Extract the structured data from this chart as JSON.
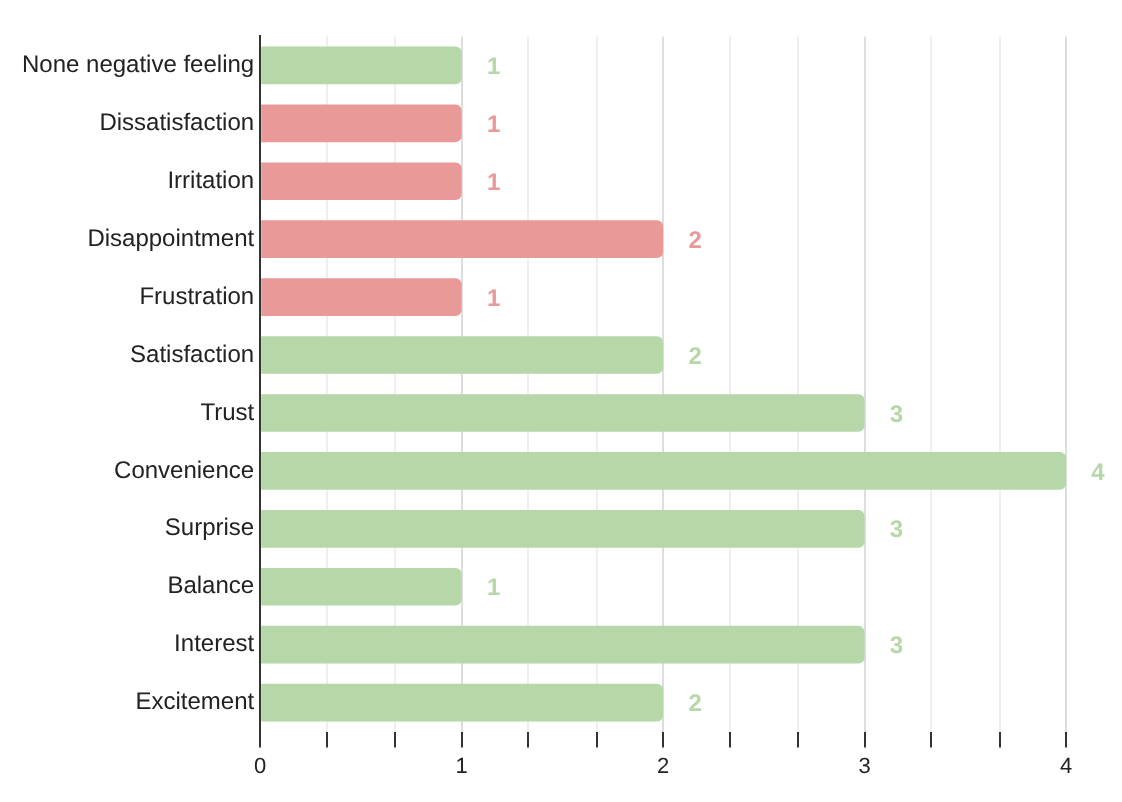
{
  "chart_data": {
    "type": "bar",
    "orientation": "horizontal",
    "categories": [
      "None negative feeling",
      "Dissatisfaction",
      "Irritation",
      "Disappointment",
      "Frustration",
      "Satisfaction",
      "Trust",
      "Convenience",
      "Surprise",
      "Balance",
      "Interest",
      "Excitement"
    ],
    "values": [
      1,
      1,
      1,
      2,
      1,
      2,
      3,
      4,
      3,
      1,
      3,
      2
    ],
    "colors": [
      "#b6d7a8",
      "#ea9999",
      "#ea9999",
      "#ea9999",
      "#ea9999",
      "#b6d7a8",
      "#b6d7a8",
      "#b6d7a8",
      "#b6d7a8",
      "#b6d7a8",
      "#b6d7a8",
      "#b6d7a8"
    ],
    "xlim": [
      0,
      4
    ],
    "xticks": [
      0,
      {
        "value": 0.33,
        "label": null
      },
      {
        "value": 0.67,
        "label": null
      },
      1,
      {
        "value": 1.33,
        "label": null
      },
      {
        "value": 1.67,
        "label": null
      },
      2,
      {
        "value": 2.33,
        "label": null
      },
      {
        "value": 2.67,
        "label": null
      },
      3,
      {
        "value": 3.33,
        "label": null
      },
      {
        "value": 3.67,
        "label": null
      },
      4
    ],
    "grid": true,
    "data_labels": true,
    "legend": false
  }
}
